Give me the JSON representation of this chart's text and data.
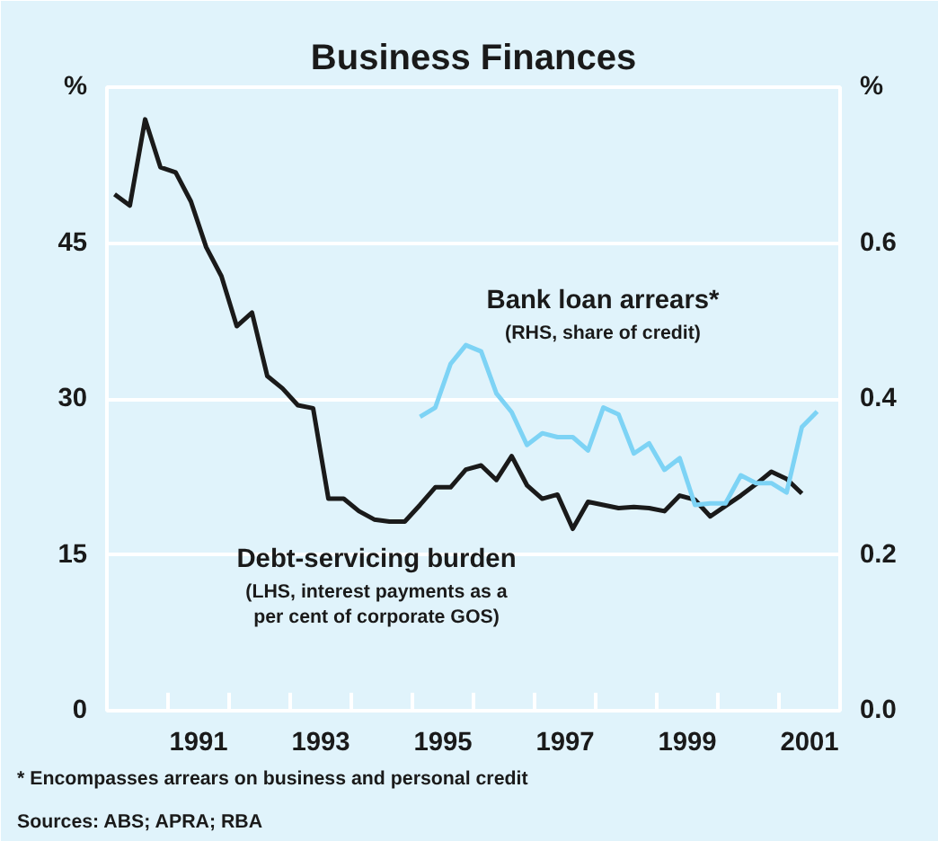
{
  "chart_data": {
    "type": "line",
    "title": "Business Finances",
    "ylabel": "%",
    "y2label": "%",
    "series": [
      {
        "name": "Debt-servicing burden",
        "color": "#1a1a1a",
        "x": [
          1990.125,
          1990.375,
          1990.625,
          1990.875,
          1991.125,
          1991.375,
          1991.625,
          1991.875,
          1992.125,
          1992.375,
          1992.625,
          1992.875,
          1993.125,
          1993.375,
          1993.625,
          1993.875,
          1994.125,
          1994.375,
          1994.625,
          1994.875,
          1995.125,
          1995.375,
          1995.625,
          1995.875,
          1996.125,
          1996.375,
          1996.625,
          1996.875,
          1997.125,
          1997.375,
          1997.625,
          1997.875,
          1998.125,
          1998.375,
          1998.625,
          1998.875,
          1999.125,
          1999.375,
          1999.625,
          1999.875,
          2000.125,
          2000.375,
          2000.625,
          2000.875,
          2001.125,
          2001.375
        ],
        "values": [
          49.7,
          48.6,
          56.9,
          52.3,
          51.8,
          49.0,
          44.6,
          41.8,
          37.0,
          38.3,
          32.2,
          31.0,
          29.4,
          29.1,
          20.4,
          20.4,
          19.2,
          18.4,
          18.2,
          18.2,
          19.8,
          21.5,
          21.5,
          23.2,
          23.6,
          22.2,
          24.5,
          21.7,
          20.4,
          20.8,
          17.5,
          20.1,
          19.8,
          19.5,
          19.6,
          19.5,
          19.2,
          20.7,
          20.3,
          18.7,
          19.7,
          20.7,
          21.8,
          23.0,
          22.3,
          20.9
        ]
      },
      {
        "name": "Bank loan arrears*",
        "color": "#7dd3f5",
        "axis": "y2",
        "x": [
          1995.125,
          1995.375,
          1995.625,
          1995.875,
          1996.125,
          1996.375,
          1996.625,
          1996.875,
          1997.125,
          1997.375,
          1997.625,
          1997.875,
          1998.125,
          1998.375,
          1998.625,
          1998.875,
          1999.125,
          1999.375,
          1999.625,
          1999.875,
          2000.125,
          2000.375,
          2000.625,
          2000.875,
          2001.125,
          2001.375,
          2001.625
        ],
        "values": [
          0.377,
          0.389,
          0.445,
          0.469,
          0.461,
          0.407,
          0.383,
          0.341,
          0.356,
          0.351,
          0.351,
          0.334,
          0.389,
          0.38,
          0.33,
          0.343,
          0.309,
          0.324,
          0.264,
          0.266,
          0.266,
          0.302,
          0.292,
          0.292,
          0.28,
          0.364,
          0.384
        ]
      }
    ],
    "xlim": [
      1990,
      2002
    ],
    "xticks": [
      {
        "value": 1991,
        "label": null
      },
      {
        "value": 1992,
        "label": null
      },
      {
        "value": 1993,
        "label": null
      },
      {
        "value": 1994,
        "label": null
      },
      {
        "value": 1995,
        "label": null
      },
      {
        "value": 1996,
        "label": null
      },
      {
        "value": 1997,
        "label": null
      },
      {
        "value": 1998,
        "label": null
      },
      {
        "value": 1999,
        "label": null
      },
      {
        "value": 2000,
        "label": null
      },
      {
        "value": 2001,
        "label": null
      },
      {
        "value": 1991.5,
        "label": "1991"
      },
      {
        "value": 1993.5,
        "label": "1993"
      },
      {
        "value": 1995.5,
        "label": "1995"
      },
      {
        "value": 1997.5,
        "label": "1997"
      },
      {
        "value": 1999.5,
        "label": "1999"
      },
      {
        "value": 2001.5,
        "label": "2001"
      }
    ],
    "ylim": [
      0,
      60
    ],
    "yticks": [
      0,
      15,
      30,
      45
    ],
    "y2lim": [
      0,
      0.8
    ],
    "y2ticks": [
      {
        "value": 0,
        "label": "0.0"
      },
      {
        "value": 0.2,
        "label": "0.2"
      },
      {
        "value": 0.4,
        "label": "0.4"
      },
      {
        "value": 0.6,
        "label": "0.6"
      }
    ],
    "grid": "y",
    "annotations": [
      "(RHS, share of credit)",
      "(LHS, interest payments as a\nper cent of corporate GOS)",
      "*     Encompasses arrears on business and personal credit",
      "Sources: ABS; APRA; RBA"
    ]
  }
}
